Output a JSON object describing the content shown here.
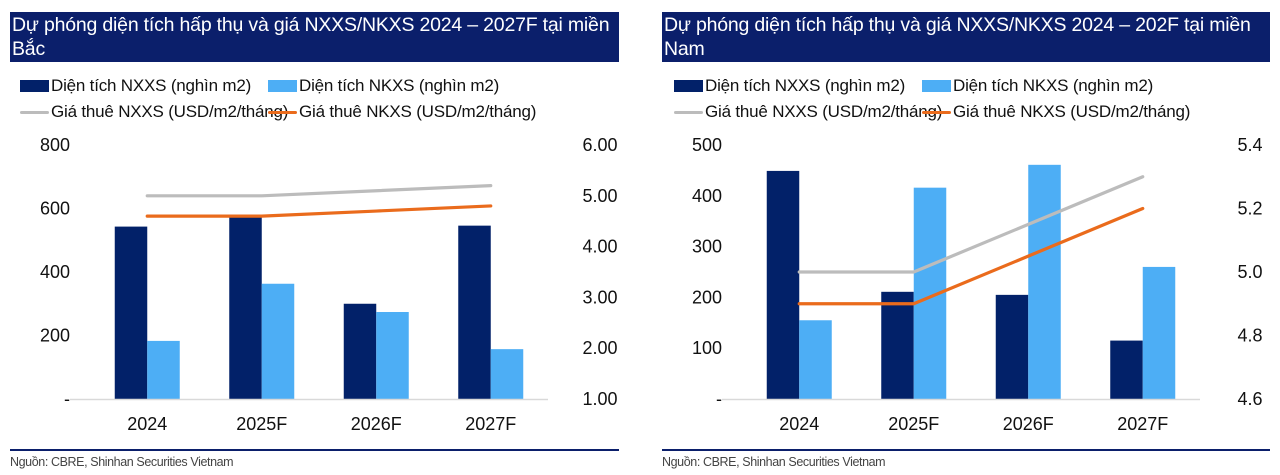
{
  "colors": {
    "header_bg": "#0b1f6b",
    "nxxs_bar": "#022169",
    "nkxs_bar": "#4daef5",
    "nxxs_price": "#bcbcbc",
    "nkxs_price": "#ea6b1c",
    "axis": "#d9d9d9"
  },
  "legend": {
    "nxxs_area": "Diện tích NXXS (nghìn m2)",
    "nkxs_area": "Diện tích NKXS (nghìn m2)",
    "nxxs_price": "Giá thuê NXXS (USD/m2/tháng)",
    "nkxs_price": "Giá thuê NKXS (USD/m2/tháng)"
  },
  "source": "Nguồn: CBRE, Shinhan Securities Vietnam",
  "chart_data": [
    {
      "type": "bar",
      "title": "Dự phóng diện tích hấp thụ và giá NXXS/NKXS 2024 – 2027F tại miền Bắc",
      "categories": [
        "2024",
        "2025F",
        "2026F",
        "2027F"
      ],
      "series": [
        {
          "name": "Diện tích NXXS (nghìn m2)",
          "type": "bar",
          "axis": "left",
          "values": [
            543,
            576,
            300,
            546
          ]
        },
        {
          "name": "Diện tích NKXS (nghìn m2)",
          "type": "bar",
          "axis": "left",
          "values": [
            183,
            363,
            274,
            157
          ]
        },
        {
          "name": "Giá thuê NXXS (USD/m2/tháng)",
          "type": "line",
          "axis": "right",
          "values": [
            5.0,
            5.0,
            5.1,
            5.2
          ]
        },
        {
          "name": "Giá thuê NKXS (USD/m2/tháng)",
          "type": "line",
          "axis": "right",
          "values": [
            4.6,
            4.6,
            4.7,
            4.8
          ]
        }
      ],
      "ylim_left": [
        0,
        800
      ],
      "yticks_left": [
        "-",
        "200",
        "400",
        "600",
        "800"
      ],
      "ylim_right": [
        1,
        6
      ],
      "yticks_right": [
        "1.00",
        "2.00",
        "3.00",
        "4.00",
        "5.00",
        "6.00"
      ],
      "xlabel": "",
      "ylabel": "",
      "grid": false,
      "legend_position": "top"
    },
    {
      "type": "bar",
      "title": "Dự phóng diện tích hấp thụ và giá NXXS/NKXS 2024 – 202F tại miền Nam",
      "categories": [
        "2024",
        "2025F",
        "2026F",
        "2027F"
      ],
      "series": [
        {
          "name": "Diện tích NXXS (nghìn m2)",
          "type": "bar",
          "axis": "left",
          "values": [
            449,
            211,
            205,
            115
          ]
        },
        {
          "name": "Diện tích NKXS (nghìn m2)",
          "type": "bar",
          "axis": "left",
          "values": [
            155,
            416,
            461,
            260
          ]
        },
        {
          "name": "Giá thuê NXXS (USD/m2/tháng)",
          "type": "line",
          "axis": "right",
          "values": [
            5.0,
            5.0,
            5.15,
            5.3
          ]
        },
        {
          "name": "Giá thuê NKXS (USD/m2/tháng)",
          "type": "line",
          "axis": "right",
          "values": [
            4.9,
            4.9,
            5.05,
            5.2
          ]
        }
      ],
      "ylim_left": [
        0,
        500
      ],
      "yticks_left": [
        "-",
        "100",
        "200",
        "300",
        "400",
        "500"
      ],
      "ylim_right": [
        4.6,
        5.4
      ],
      "yticks_right": [
        "4.6",
        "4.8",
        "5.0",
        "5.2",
        "5.4"
      ],
      "xlabel": "",
      "ylabel": "",
      "grid": false,
      "legend_position": "top"
    }
  ]
}
